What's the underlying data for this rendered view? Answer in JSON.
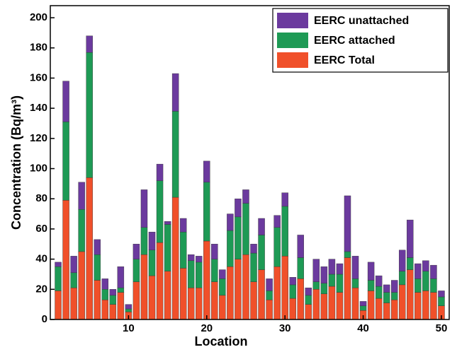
{
  "chart_data": {
    "type": "stacked-bar",
    "x_label": "Location",
    "y_label": "Concentration (Bq/m³)",
    "x": [
      1,
      2,
      3,
      4,
      5,
      6,
      7,
      8,
      9,
      10,
      11,
      12,
      13,
      14,
      15,
      16,
      17,
      18,
      19,
      20,
      21,
      22,
      23,
      24,
      25,
      26,
      27,
      28,
      29,
      30,
      31,
      32,
      33,
      34,
      35,
      36,
      37,
      38,
      39,
      40,
      41,
      42,
      43,
      44,
      45,
      46,
      47,
      48,
      49,
      50
    ],
    "series": [
      {
        "name": "EERC Total",
        "color": "#f0502a",
        "values": [
          19,
          79,
          21,
          45,
          94,
          26,
          13,
          10,
          18,
          5,
          25,
          43,
          29,
          51,
          32,
          81,
          34,
          21,
          21,
          52,
          25,
          16,
          35,
          40,
          43,
          25,
          33,
          13,
          35,
          42,
          14,
          27,
          10,
          20,
          17,
          22,
          18,
          41,
          21,
          6,
          19,
          14,
          11,
          13,
          23,
          33,
          18,
          19,
          18,
          9
        ]
      },
      {
        "name": "EERC attached",
        "color": "#1e9a55",
        "values": [
          16,
          52,
          10,
          28,
          83,
          17,
          7,
          6,
          3,
          2,
          15,
          18,
          17,
          41,
          31,
          57,
          24,
          18,
          17,
          39,
          15,
          11,
          24,
          28,
          34,
          19,
          23,
          6,
          26,
          33,
          9,
          14,
          6,
          5,
          7,
          8,
          12,
          4,
          6,
          3,
          7,
          8,
          7,
          5,
          9,
          8,
          9,
          13,
          9,
          6
        ]
      },
      {
        "name": "EERC unattached",
        "color": "#6b3a9e",
        "values": [
          3,
          27,
          11,
          18,
          11,
          10,
          7,
          4,
          14,
          3,
          10,
          25,
          12,
          11,
          2,
          25,
          9,
          4,
          4,
          14,
          10,
          6,
          11,
          12,
          9,
          6,
          11,
          8,
          8,
          9,
          5,
          15,
          5,
          15,
          11,
          10,
          7,
          37,
          15,
          3,
          12,
          7,
          5,
          8,
          14,
          25,
          10,
          7,
          9,
          4
        ]
      }
    ],
    "xlim": [
      0,
      51
    ],
    "xticks": [
      10,
      20,
      30,
      40,
      50
    ],
    "ylim": [
      0,
      208
    ],
    "yticks": [
      0,
      20,
      40,
      60,
      80,
      100,
      120,
      140,
      160,
      180,
      200
    ],
    "legend_position": "upper right"
  }
}
